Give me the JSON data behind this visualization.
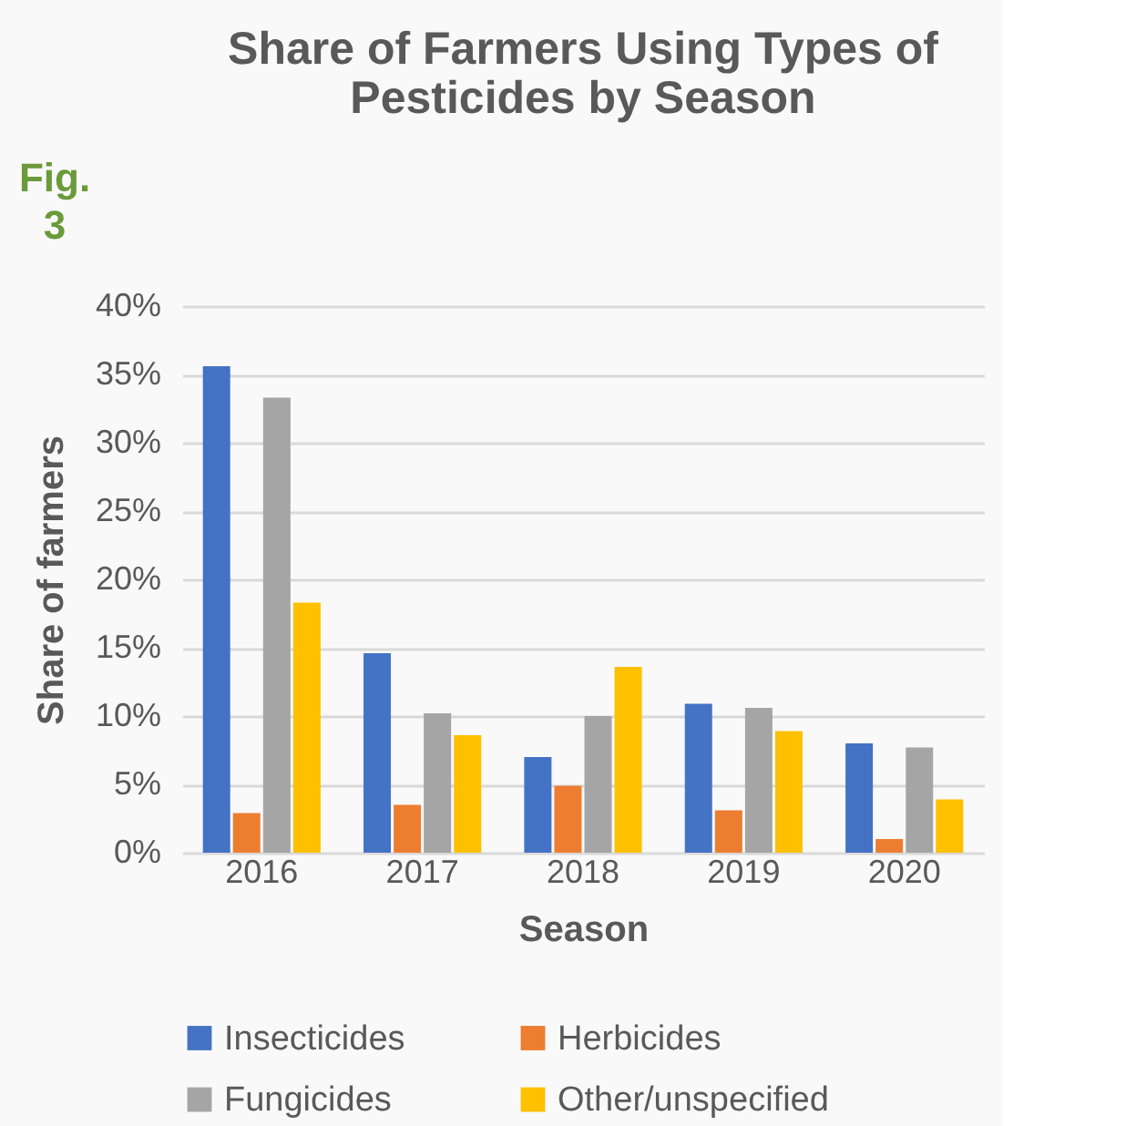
{
  "chart_data": {
    "type": "bar",
    "title": [
      "Share of Farmers Using Types of",
      "Pesticides by Season"
    ],
    "xlabel": "Season",
    "ylabel": "Share of farmers",
    "annotations": [
      "Fig. 3"
    ],
    "categories": [
      "2016",
      "2017",
      "2018",
      "2019",
      "2020"
    ],
    "series": [
      {
        "name": "Insecticides",
        "color": "#4472c4",
        "values": [
          35.6,
          14.6,
          7.0,
          10.9,
          8.0
        ]
      },
      {
        "name": "Herbicides",
        "color": "#ed7d31",
        "values": [
          2.9,
          3.5,
          4.9,
          3.1,
          1.0
        ]
      },
      {
        "name": "Fungicides",
        "color": "#a5a5a5",
        "values": [
          33.3,
          10.2,
          10.0,
          10.6,
          7.7
        ]
      },
      {
        "name": "Other/unspecified",
        "color": "#ffc000",
        "values": [
          18.3,
          8.6,
          13.6,
          8.9,
          3.9
        ]
      }
    ],
    "ylim": [
      0,
      40
    ],
    "yticks": [
      {
        "value": 0,
        "label": "0%"
      },
      {
        "value": 5,
        "label": "5%"
      },
      {
        "value": 10,
        "label": "10%"
      },
      {
        "value": 15,
        "label": "15%"
      },
      {
        "value": 20,
        "label": "20%"
      },
      {
        "value": 25,
        "label": "25%"
      },
      {
        "value": 30,
        "label": "30%"
      },
      {
        "value": 35,
        "label": "35%"
      },
      {
        "value": 40,
        "label": "40%"
      }
    ],
    "grid": "y",
    "legend": "bottom"
  }
}
